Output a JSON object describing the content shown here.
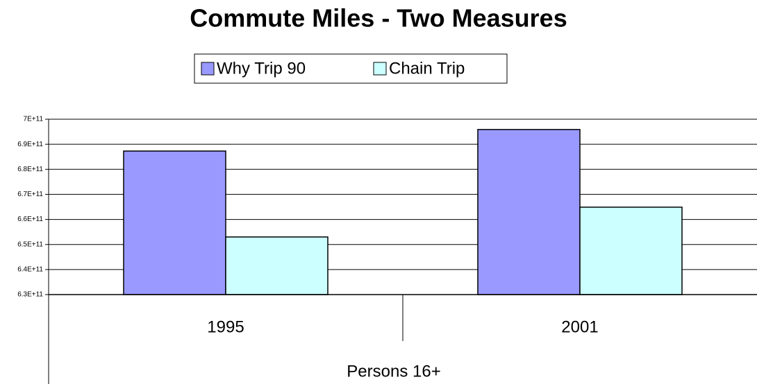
{
  "chart_data": {
    "type": "bar",
    "title": "Commute Miles - Two Measures",
    "categories": [
      "1995",
      "2001"
    ],
    "x_label": "Persons 16+",
    "series": [
      {
        "name": "Why Trip 90",
        "color": "#9999ff",
        "values": [
          687300000000,
          695900000000
        ]
      },
      {
        "name": "Chain Trip",
        "color": "#ccffff",
        "values": [
          653000000000,
          664900000000
        ]
      }
    ],
    "ylim": [
      630000000000,
      700000000000
    ],
    "yticks": [
      {
        "value": 630000000000,
        "label": "6.3E+11"
      },
      {
        "value": 640000000000,
        "label": "6.4E+11"
      },
      {
        "value": 650000000000,
        "label": "6.5E+11"
      },
      {
        "value": 660000000000,
        "label": "6.6E+11"
      },
      {
        "value": 670000000000,
        "label": "6.7E+11"
      },
      {
        "value": 680000000000,
        "label": "6.8E+11"
      },
      {
        "value": 690000000000,
        "label": "6.9E+11"
      },
      {
        "value": 700000000000,
        "label": "7E+11"
      }
    ],
    "grid": true,
    "legend": "top"
  }
}
